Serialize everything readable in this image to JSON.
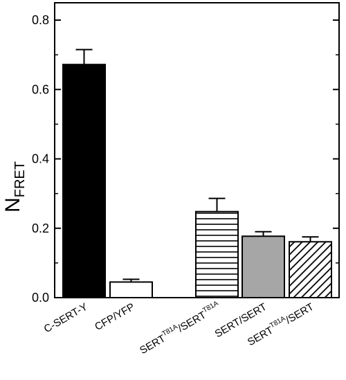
{
  "chart_data": {
    "type": "bar",
    "ylabel": "N",
    "ylabel_sub": "FRET",
    "ylim": [
      0,
      0.85
    ],
    "yticks": [
      "0.0",
      "0.2",
      "0.4",
      "0.6",
      "0.8"
    ],
    "grid": false,
    "categories": [
      {
        "base": "C-SERT-Y"
      },
      {
        "base": "CFP/YFP"
      },
      {
        "base": "SERT",
        "sup": "T81A",
        "mid": "/SERT",
        "sup2": "T81A"
      },
      {
        "base": "SERT/SERT"
      },
      {
        "base": "SERT",
        "sup": "T81A",
        "mid": "/SERT"
      }
    ],
    "values": [
      0.672,
      0.045,
      0.248,
      0.177,
      0.161
    ],
    "errors": [
      0.043,
      0.008,
      0.038,
      0.013,
      0.014
    ],
    "fills": [
      "black",
      "white",
      "horizontal-lines",
      "gray",
      "diagonal-lines"
    ],
    "colors": {
      "black": "#000000",
      "white": "#ffffff",
      "gray": "#a6a6a6"
    }
  }
}
